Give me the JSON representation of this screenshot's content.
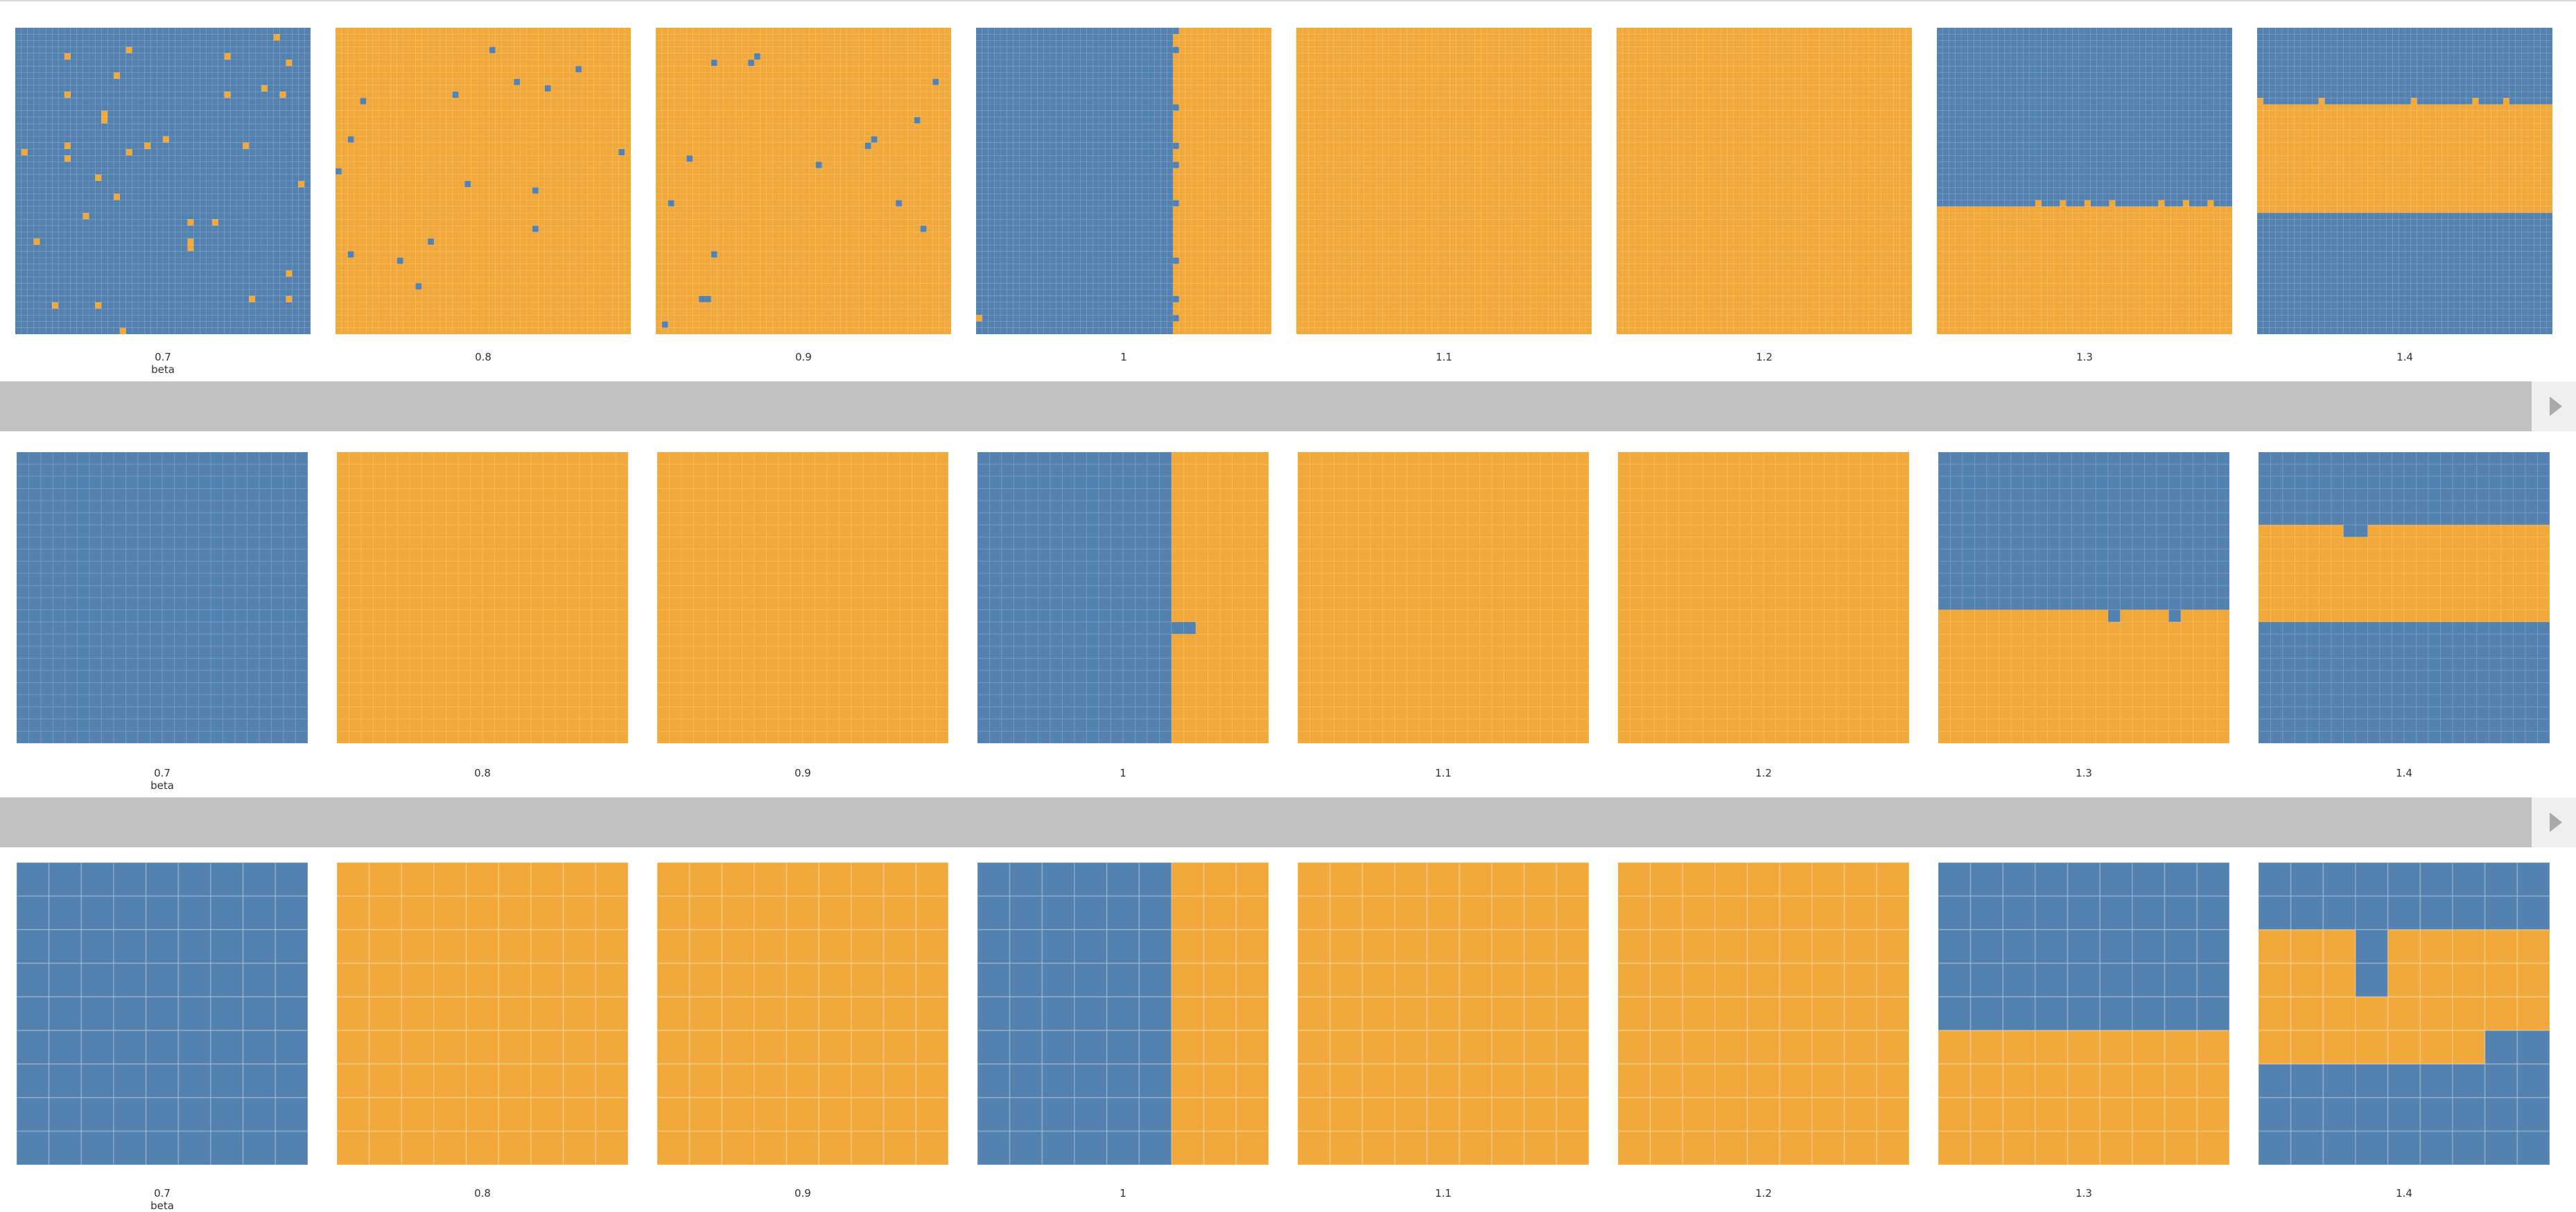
{
  "colors": {
    "blue": "#5482b0",
    "orange": "#f2a93b",
    "divider": "#c1c1c1"
  },
  "axis_title": "beta",
  "beta_labels": [
    "0.7",
    "0.8",
    "0.9",
    "1",
    "1.1",
    "1.2",
    "1.3",
    "1.4"
  ],
  "chart_data": [
    {
      "type": "heatmap",
      "title": "",
      "xlabel": "beta",
      "grid_cells": 48,
      "categories": [
        "0.7",
        "0.8",
        "0.9",
        "1",
        "1.1",
        "1.2",
        "1.3",
        "1.4"
      ],
      "panels": [
        {
          "beta": "0.7",
          "pattern": "mostly blue with scattered orange cells"
        },
        {
          "beta": "0.8",
          "pattern": "mostly orange with scattered blue cells"
        },
        {
          "beta": "0.9",
          "pattern": "mostly orange with scattered blue cells"
        },
        {
          "beta": "1",
          "pattern": "blue left ~2/3, orange right ~1/3, vertical boundary"
        },
        {
          "beta": "1.1",
          "pattern": "all orange"
        },
        {
          "beta": "1.2",
          "pattern": "all orange"
        },
        {
          "beta": "1.3",
          "pattern": "blue top ~58%, orange bottom"
        },
        {
          "beta": "1.4",
          "pattern": "blue top band, orange middle band, blue bottom band"
        }
      ]
    },
    {
      "type": "heatmap",
      "title": "",
      "xlabel": "beta",
      "grid_cells": 24,
      "categories": [
        "0.7",
        "0.8",
        "0.9",
        "1",
        "1.1",
        "1.2",
        "1.3",
        "1.4"
      ],
      "panels": [
        {
          "beta": "0.7",
          "pattern": "all blue"
        },
        {
          "beta": "0.8",
          "pattern": "all orange"
        },
        {
          "beta": "0.9",
          "pattern": "all orange"
        },
        {
          "beta": "1",
          "pattern": "blue left ~2/3, orange right, small notch"
        },
        {
          "beta": "1.1",
          "pattern": "all orange"
        },
        {
          "beta": "1.2",
          "pattern": "all orange"
        },
        {
          "beta": "1.3",
          "pattern": "blue top ~55%, orange bottom"
        },
        {
          "beta": "1.4",
          "pattern": "blue top, orange middle band, blue bottom"
        }
      ]
    },
    {
      "type": "heatmap",
      "title": "",
      "xlabel": "beta",
      "grid_cells": 9,
      "categories": [
        "0.7",
        "0.8",
        "0.9",
        "1",
        "1.1",
        "1.2",
        "1.3",
        "1.4"
      ],
      "panels": [
        {
          "beta": "0.7",
          "pattern": "all blue"
        },
        {
          "beta": "0.8",
          "pattern": "all orange"
        },
        {
          "beta": "0.9",
          "pattern": "all orange"
        },
        {
          "beta": "1",
          "pattern": "blue left ~2/3, orange right"
        },
        {
          "beta": "1.1",
          "pattern": "all orange"
        },
        {
          "beta": "1.2",
          "pattern": "all orange"
        },
        {
          "beta": "1.3",
          "pattern": "blue top ~55%, orange bottom"
        },
        {
          "beta": "1.4",
          "pattern": "blue top, orange middle band with notch, blue bottom"
        }
      ]
    }
  ]
}
